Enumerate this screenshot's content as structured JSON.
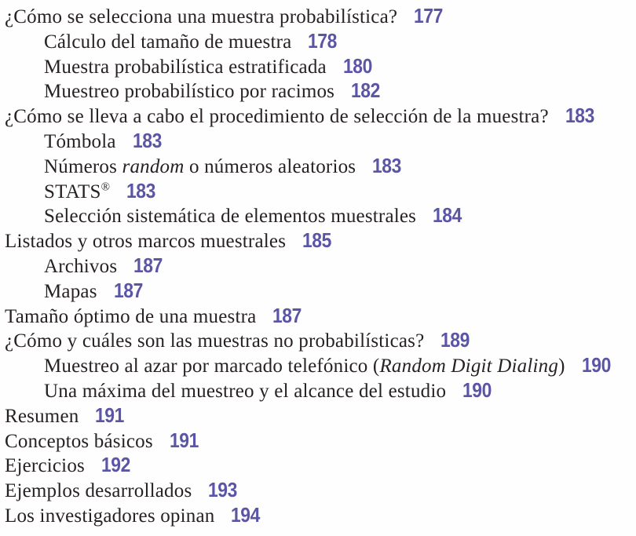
{
  "document": {
    "kind": "book-table-of-contents",
    "language": "es"
  },
  "colors": {
    "text": "#272124",
    "page_number": "#5a55a5",
    "background": "#fffefe"
  },
  "toc": {
    "entries": [
      {
        "indent": 0,
        "page": "177",
        "segments": [
          {
            "style": "normal",
            "text": "¿Cómo se selecciona una muestra probabilística?"
          }
        ]
      },
      {
        "indent": 1,
        "page": "178",
        "segments": [
          {
            "style": "normal",
            "text": "Cálculo del tamaño de muestra"
          }
        ]
      },
      {
        "indent": 1,
        "page": "180",
        "segments": [
          {
            "style": "normal",
            "text": "Muestra probabilística estratificada"
          }
        ]
      },
      {
        "indent": 1,
        "page": "182",
        "segments": [
          {
            "style": "normal",
            "text": "Muestreo probabilístico por racimos"
          }
        ]
      },
      {
        "indent": 0,
        "page": "183",
        "segments": [
          {
            "style": "normal",
            "text": "¿Cómo se lleva a cabo el procedimiento de selección de la muestra?"
          }
        ]
      },
      {
        "indent": 1,
        "page": "183",
        "segments": [
          {
            "style": "normal",
            "text": "Tómbola"
          }
        ]
      },
      {
        "indent": 1,
        "page": "183",
        "segments": [
          {
            "style": "normal",
            "text": "Números "
          },
          {
            "style": "italic",
            "text": "random"
          },
          {
            "style": "normal",
            "text": " o números aleatorios"
          }
        ]
      },
      {
        "indent": 1,
        "page": "183",
        "segments": [
          {
            "style": "normal",
            "text": "STATS"
          },
          {
            "style": "sup",
            "text": "®"
          }
        ]
      },
      {
        "indent": 1,
        "page": "184",
        "segments": [
          {
            "style": "normal",
            "text": "Selección sistemática de elementos muestrales"
          }
        ]
      },
      {
        "indent": 0,
        "page": "185",
        "segments": [
          {
            "style": "normal",
            "text": "Listados y otros marcos muestrales"
          }
        ]
      },
      {
        "indent": 1,
        "page": "187",
        "segments": [
          {
            "style": "normal",
            "text": "Archivos"
          }
        ]
      },
      {
        "indent": 1,
        "page": "187",
        "segments": [
          {
            "style": "normal",
            "text": "Mapas"
          }
        ]
      },
      {
        "indent": 0,
        "page": "187",
        "segments": [
          {
            "style": "normal",
            "text": "Tamaño óptimo de una muestra"
          }
        ]
      },
      {
        "indent": 0,
        "page": "189",
        "segments": [
          {
            "style": "normal",
            "text": "¿Cómo y cuáles son las muestras no probabilísticas?"
          }
        ]
      },
      {
        "indent": 1,
        "page": "190",
        "segments": [
          {
            "style": "normal",
            "text": "Muestreo al azar por marcado telefónico ("
          },
          {
            "style": "italic",
            "text": "Random Digit Dialing"
          },
          {
            "style": "normal",
            "text": ")"
          }
        ]
      },
      {
        "indent": 1,
        "page": "190",
        "segments": [
          {
            "style": "normal",
            "text": "Una máxima del muestreo y el alcance del estudio"
          }
        ]
      },
      {
        "indent": 0,
        "page": "191",
        "segments": [
          {
            "style": "normal",
            "text": "Resumen"
          }
        ]
      },
      {
        "indent": 0,
        "page": "191",
        "segments": [
          {
            "style": "normal",
            "text": "Conceptos básicos"
          }
        ]
      },
      {
        "indent": 0,
        "page": "192",
        "segments": [
          {
            "style": "normal",
            "text": "Ejercicios"
          }
        ]
      },
      {
        "indent": 0,
        "page": "193",
        "segments": [
          {
            "style": "normal",
            "text": "Ejemplos desarrollados"
          }
        ]
      },
      {
        "indent": 0,
        "page": "194",
        "segments": [
          {
            "style": "normal",
            "text": "Los investigadores opinan"
          }
        ]
      }
    ]
  }
}
